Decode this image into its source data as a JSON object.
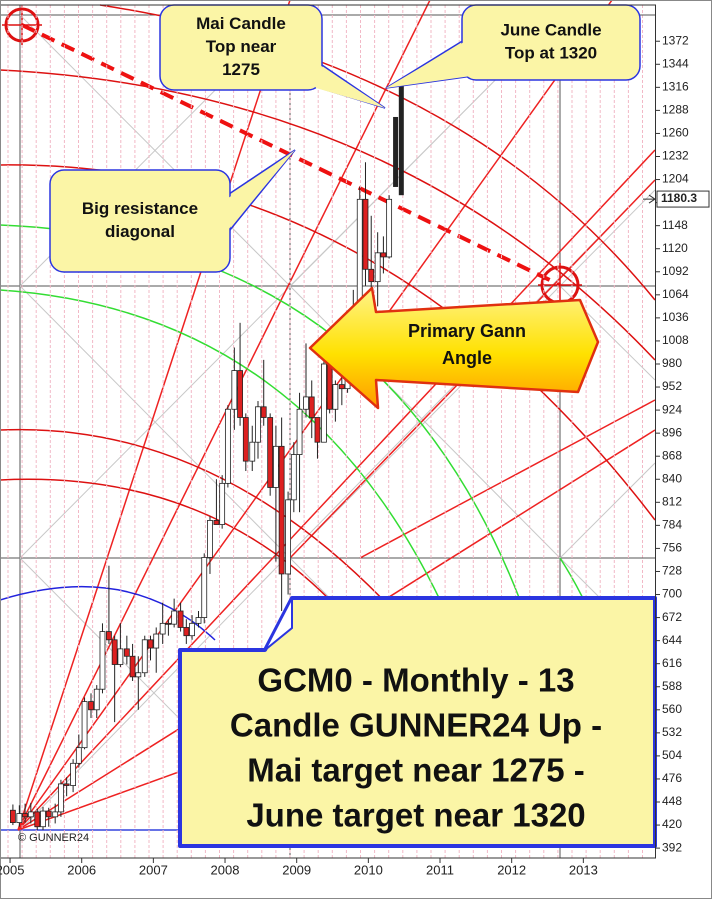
{
  "chart_data": {
    "type": "candlestick",
    "xlim": [
      2004.86,
      2014.0
    ],
    "xticks": [
      2005,
      2006,
      2007,
      2008,
      2009,
      2010,
      2011,
      2012,
      2013
    ],
    "ylim": [
      380,
      1416
    ],
    "yticks": [
      392,
      420,
      448,
      476,
      504,
      532,
      560,
      588,
      616,
      644,
      672,
      700,
      728,
      756,
      784,
      812,
      840,
      868,
      896,
      924,
      952,
      980,
      1008,
      1036,
      1064,
      1092,
      1120,
      1148,
      1176,
      1204,
      1232,
      1260,
      1288,
      1316,
      1344,
      1372
    ],
    "last_price": 1180.3,
    "up_color": "#ffffff",
    "down_color": "#dd2020",
    "x": [
      2005.04,
      2005.13,
      2005.21,
      2005.29,
      2005.38,
      2005.46,
      2005.54,
      2005.63,
      2005.71,
      2005.79,
      2005.88,
      2005.96,
      2006.04,
      2006.13,
      2006.21,
      2006.29,
      2006.38,
      2006.46,
      2006.54,
      2006.63,
      2006.71,
      2006.79,
      2006.88,
      2006.96,
      2007.04,
      2007.13,
      2007.21,
      2007.29,
      2007.38,
      2007.46,
      2007.54,
      2007.63,
      2007.71,
      2007.79,
      2007.88,
      2007.96,
      2008.04,
      2008.13,
      2008.21,
      2008.29,
      2008.38,
      2008.46,
      2008.54,
      2008.63,
      2008.71,
      2008.79,
      2008.88,
      2008.96,
      2009.04,
      2009.13,
      2009.21,
      2009.29,
      2009.38,
      2009.46,
      2009.54,
      2009.63,
      2009.71,
      2009.79,
      2009.88,
      2009.96,
      2010.04,
      2010.13,
      2010.21,
      2010.29
    ],
    "open": [
      438,
      423,
      434,
      430,
      436,
      418,
      437,
      430,
      436,
      470,
      468,
      495,
      514,
      570,
      560,
      585,
      655,
      645,
      615,
      634,
      625,
      600,
      605,
      645,
      635,
      652,
      665,
      664,
      680,
      660,
      650,
      665,
      672,
      745,
      790,
      785,
      835,
      925,
      972,
      915,
      862,
      885,
      928,
      915,
      830,
      880,
      725,
      815,
      870,
      925,
      940,
      915,
      885,
      980,
      925,
      955,
      950,
      1000,
      1040,
      1180,
      1095,
      1080,
      1115,
      1110
    ],
    "high": [
      445,
      444,
      446,
      447,
      440,
      442,
      441,
      446,
      475,
      478,
      500,
      530,
      575,
      580,
      590,
      665,
      735,
      650,
      665,
      650,
      640,
      625,
      650,
      650,
      660,
      690,
      670,
      695,
      690,
      670,
      675,
      680,
      750,
      795,
      840,
      845,
      930,
      1000,
      1030,
      920,
      905,
      935,
      985,
      920,
      905,
      915,
      825,
      885,
      945,
      1005,
      960,
      915,
      985,
      990,
      960,
      965,
      1020,
      1070,
      1195,
      1225,
      1160,
      1140,
      1135,
      1185
    ],
    "low": [
      420,
      418,
      423,
      422,
      414,
      414,
      418,
      422,
      430,
      455,
      460,
      490,
      512,
      550,
      550,
      580,
      640,
      545,
      612,
      615,
      595,
      560,
      600,
      620,
      605,
      640,
      650,
      660,
      655,
      640,
      645,
      660,
      665,
      725,
      785,
      780,
      830,
      900,
      905,
      850,
      850,
      865,
      905,
      820,
      740,
      680,
      700,
      800,
      800,
      915,
      890,
      865,
      885,
      920,
      910,
      930,
      945,
      1000,
      1040,
      1075,
      1050,
      1050,
      1090,
      1108
    ],
    "close": [
      423,
      434,
      430,
      436,
      418,
      437,
      430,
      436,
      470,
      468,
      495,
      514,
      570,
      560,
      585,
      655,
      645,
      615,
      634,
      625,
      600,
      605,
      645,
      635,
      652,
      665,
      664,
      680,
      660,
      650,
      665,
      672,
      745,
      790,
      785,
      835,
      925,
      972,
      915,
      862,
      885,
      928,
      915,
      830,
      880,
      725,
      815,
      870,
      925,
      940,
      915,
      885,
      980,
      925,
      955,
      950,
      1000,
      1040,
      1180,
      1095,
      1080,
      1115,
      1110,
      1180
    ],
    "projections": {
      "color": "#222222",
      "x": [
        2010.38,
        2010.46
      ],
      "low": [
        1195,
        1185
      ],
      "high": [
        1280,
        1320
      ]
    },
    "annotations": [
      {
        "lines": [
          "Mai Candle",
          "Top near",
          "1275"
        ]
      },
      {
        "lines": [
          "June Candle",
          "Top at 1320"
        ]
      },
      {
        "lines": [
          "Big resistance",
          "diagonal"
        ]
      },
      {
        "lines": [
          "Primary Gann",
          "Angle"
        ]
      }
    ],
    "headline": {
      "lines": [
        "GCM0 - Monthly - 13",
        "Candle GUNNER24 Up -",
        "Mai target near 1275 -",
        "June target near 1320"
      ]
    },
    "copyright": "© GUNNER24"
  }
}
